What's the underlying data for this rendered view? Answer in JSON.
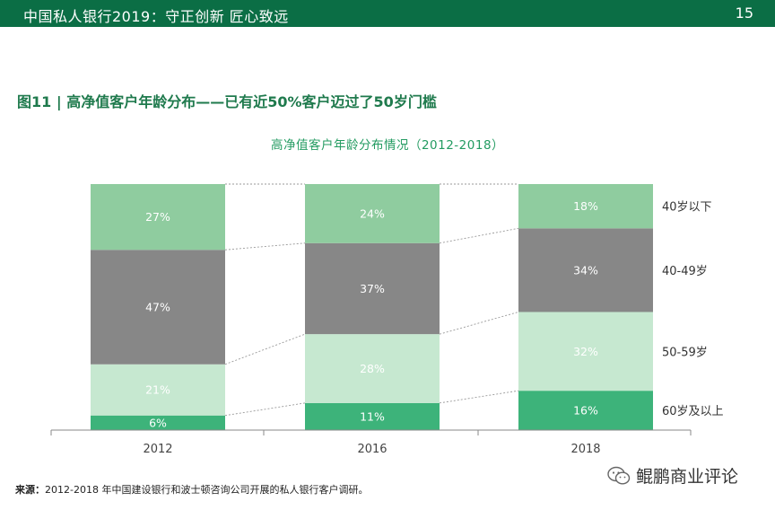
{
  "header": {
    "title": "中国私人银行2019：守正创新 匠心致远",
    "page_number": "15"
  },
  "figure": {
    "title": "图11 | 高净值客户年龄分布——已有近50%客户迈过了50岁门槛",
    "source_label": "来源：",
    "source_text": "2012-2018 年中国建设银行和波士顿咨询公司开展的私人银行客户调研。"
  },
  "watermark": {
    "icon": "wechat-icon",
    "text": "鲲鹏商业评论"
  },
  "chart_data": {
    "type": "bar",
    "stacked": true,
    "normalized_percent": true,
    "title": "高净值客户年龄分布情况（2012-2018）",
    "categories": [
      "2012",
      "2016",
      "2018"
    ],
    "series": [
      {
        "name": "60岁及以上",
        "values": [
          6,
          11,
          16
        ],
        "labels": [
          "6%",
          "11%",
          "16%"
        ],
        "color": "#3db37a",
        "label_color": "#ffffff"
      },
      {
        "name": "50-59岁",
        "values": [
          21,
          28,
          32
        ],
        "labels": [
          "21%",
          "28%",
          "32%"
        ],
        "color": "#c6e8d0",
        "label_color": "#ffffff"
      },
      {
        "name": "40-49岁",
        "values": [
          47,
          37,
          34
        ],
        "labels": [
          "47%",
          "37%",
          "34%"
        ],
        "color": "#878787",
        "label_color": "#ffffff"
      },
      {
        "name": "40岁以下",
        "values": [
          27,
          24,
          18
        ],
        "labels": [
          "27%",
          "24%",
          "18%"
        ],
        "color": "#8fcc9f",
        "label_color": "#ffffff"
      }
    ],
    "legend_position": "right",
    "grid": false
  }
}
